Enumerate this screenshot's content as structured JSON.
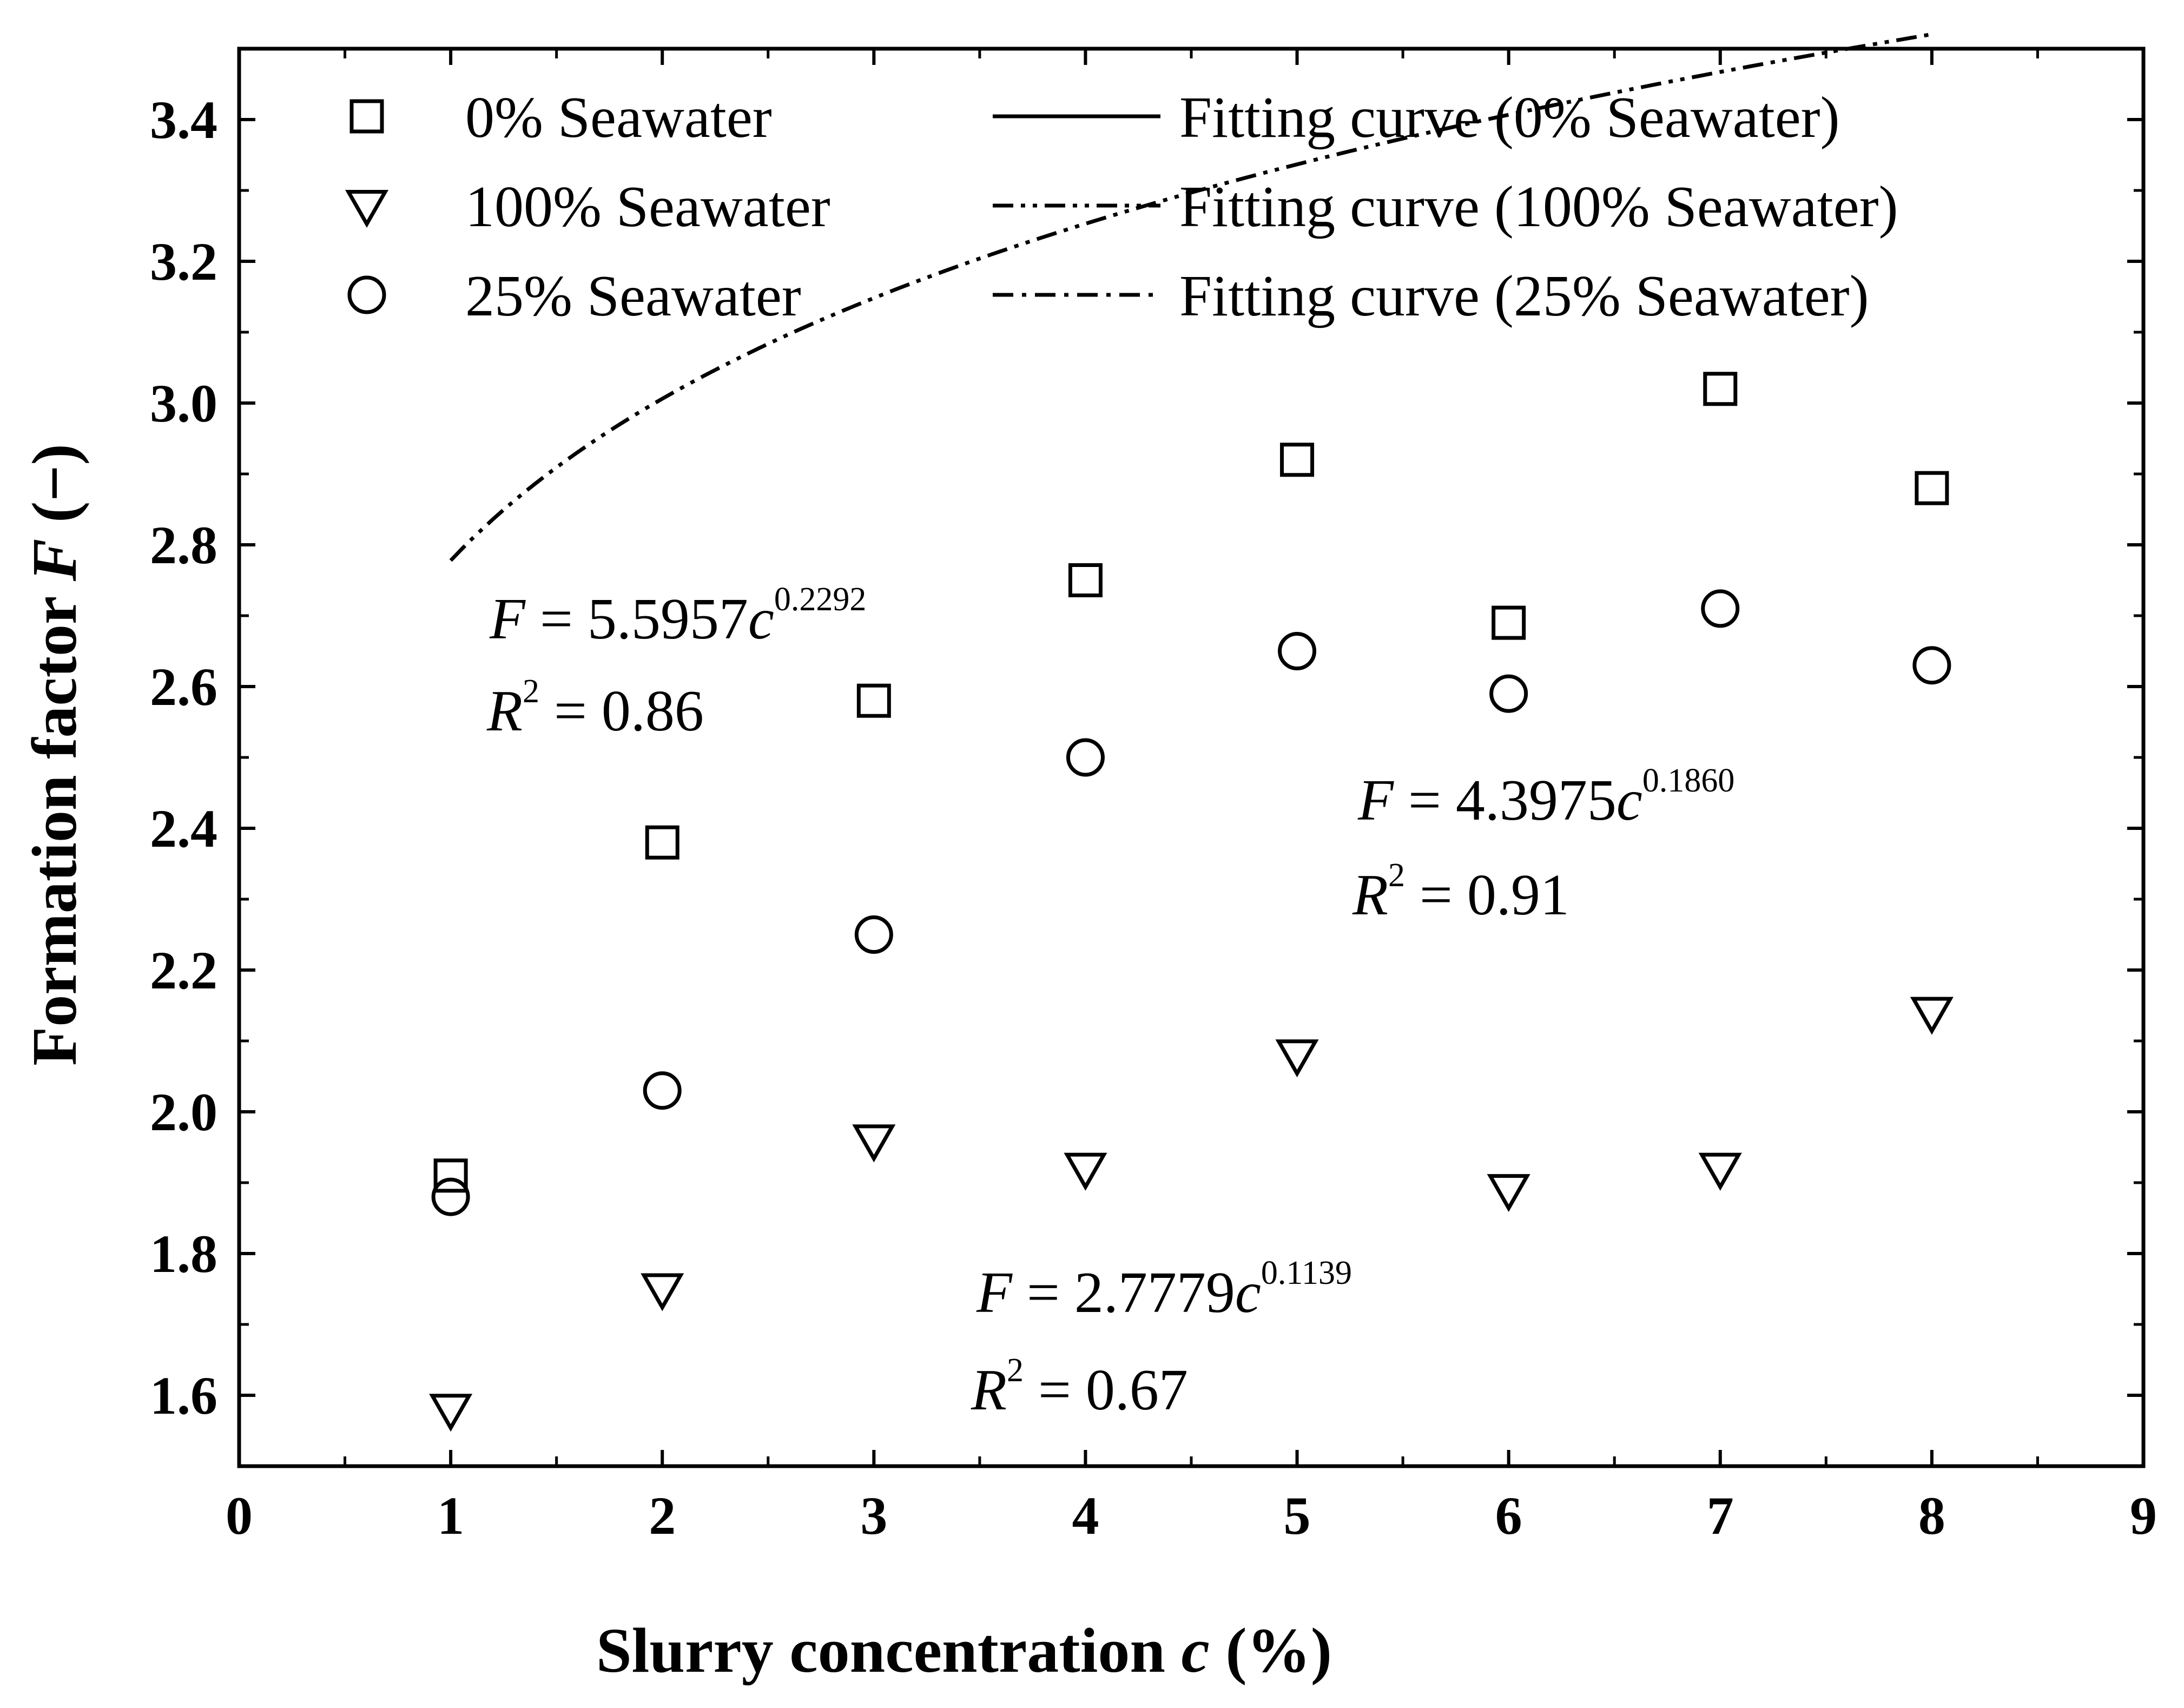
{
  "chart_data": {
    "type": "scatter",
    "title": "",
    "xlabel": {
      "text": "Slurry concentration ",
      "italic": "c",
      "suffix": " (%)"
    },
    "ylabel": {
      "text": "Formation factor ",
      "italic": "F",
      "suffix": " (−)"
    },
    "xlim": [
      0,
      9
    ],
    "ylim": [
      1.5,
      3.5
    ],
    "x_ticks": [
      0,
      1,
      2,
      3,
      4,
      5,
      6,
      7,
      8,
      9
    ],
    "x_tick_labels": [
      "0",
      "1",
      "2",
      "3",
      "4",
      "5",
      "6",
      "7",
      "8",
      "9"
    ],
    "y_ticks": [
      1.6,
      1.8,
      2.0,
      2.2,
      2.4,
      2.6,
      2.8,
      3.0,
      3.2,
      3.4
    ],
    "y_tick_labels": [
      "1.6",
      "1.8",
      "2.0",
      "2.2",
      "2.4",
      "2.6",
      "2.8",
      "3.0",
      "3.2",
      "3.4"
    ],
    "grid": false,
    "legend_position": "top",
    "series": [
      {
        "name": "0% Seawater",
        "marker": "square",
        "x": [
          1,
          2,
          3,
          4,
          5,
          6,
          7,
          8
        ],
        "y": [
          1.91,
          2.38,
          2.58,
          2.75,
          2.92,
          2.69,
          3.02,
          2.88
        ],
        "fit": {
          "name": "Fitting curve (0% Seawater)",
          "a": 5.5957,
          "b": 0.2292,
          "style": "solid",
          "x_range": [
            1,
            8
          ]
        }
      },
      {
        "name": "100% Seawater",
        "marker": "triangle-down",
        "x": [
          1,
          2,
          3,
          4,
          5,
          6,
          7,
          8
        ],
        "y": [
          1.58,
          1.75,
          1.96,
          1.92,
          2.08,
          1.89,
          1.92,
          2.14
        ],
        "fit": {
          "name": "Fitting curve (100% Seawater)",
          "a": 2.7779,
          "b": 0.1139,
          "style": "dash-dot-dot",
          "x_range": [
            1,
            8
          ]
        }
      },
      {
        "name": "25% Seawater",
        "marker": "circle",
        "x": [
          1,
          2,
          3,
          4,
          5,
          6,
          7,
          8
        ],
        "y": [
          1.88,
          2.03,
          2.25,
          2.5,
          2.65,
          2.59,
          2.71,
          2.63
        ],
        "fit": {
          "name": "Fitting curve (25% Seawater)",
          "a": 4.3975,
          "b": 0.186,
          "style": "dash-dot",
          "x_range": [
            1,
            8
          ]
        }
      }
    ],
    "annotations": [
      {
        "for": "0% Seawater",
        "eq_prefix": "F",
        "eq_mid": " = 5.5957",
        "eq_var": "c",
        "eq_exp": "0.2292",
        "r_var": "R",
        "r_exp": "2",
        "r_rest": " = 0.86"
      },
      {
        "for": "25% Seawater",
        "eq_prefix": "F",
        "eq_mid": " = 4.3975",
        "eq_var": "c",
        "eq_exp": "0.1860",
        "r_var": "R",
        "r_exp": "2",
        "r_rest": " = 0.91"
      },
      {
        "for": "100% Seawater",
        "eq_prefix": "F",
        "eq_mid": " = 2.7779",
        "eq_var": "c",
        "eq_exp": "0.1139",
        "r_var": "R",
        "r_exp": "2",
        "r_rest": " = 0.67"
      }
    ],
    "colors": {
      "ink": "#000000",
      "background": "#ffffff"
    }
  }
}
